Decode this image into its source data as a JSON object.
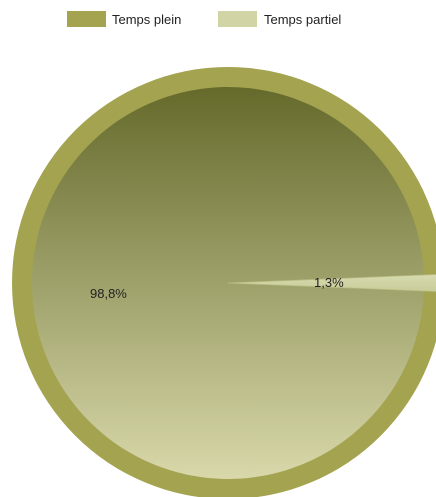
{
  "chart_data": {
    "type": "pie",
    "title": "",
    "legend_position": "top",
    "series": [
      {
        "name": "Temps plein",
        "value": 98.8,
        "label": "98,8%",
        "color": "#a3a350",
        "gradient_top": "#656a2b",
        "gradient_bottom": "#d8d8aa"
      },
      {
        "name": "Temps partiel",
        "value": 1.3,
        "label": "1,3%",
        "color": "#d1d4a4",
        "gradient_top": "#d8dbb0",
        "gradient_bottom": "#c8cc98"
      }
    ]
  }
}
